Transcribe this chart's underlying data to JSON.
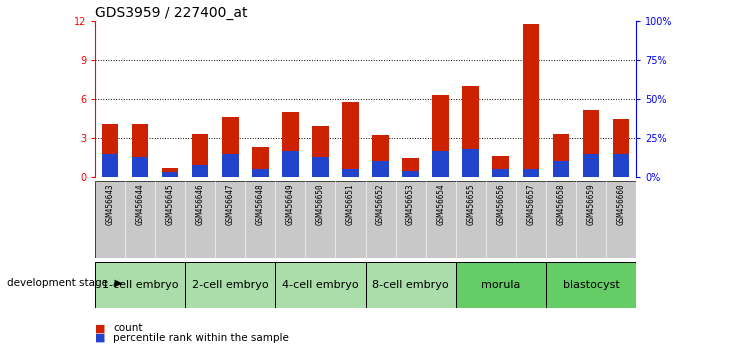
{
  "title": "GDS3959 / 227400_at",
  "samples": [
    "GSM456643",
    "GSM456644",
    "GSM456645",
    "GSM456646",
    "GSM456647",
    "GSM456648",
    "GSM456649",
    "GSM456650",
    "GSM456651",
    "GSM456652",
    "GSM456653",
    "GSM456654",
    "GSM456655",
    "GSM456656",
    "GSM456657",
    "GSM456658",
    "GSM456659",
    "GSM456660"
  ],
  "counts": [
    4.1,
    4.1,
    0.7,
    3.3,
    4.6,
    2.3,
    5.0,
    3.9,
    5.8,
    3.2,
    1.5,
    6.3,
    7.0,
    1.6,
    11.8,
    3.3,
    5.2,
    4.5
  ],
  "percentile_vals": [
    15,
    13,
    3,
    8,
    15,
    5,
    17,
    13,
    5,
    10,
    4,
    17,
    18,
    5,
    5,
    10,
    15,
    15
  ],
  "stages": [
    {
      "label": "1-cell embryo",
      "start": 0,
      "end": 3
    },
    {
      "label": "2-cell embryo",
      "start": 3,
      "end": 6
    },
    {
      "label": "4-cell embryo",
      "start": 6,
      "end": 9
    },
    {
      "label": "8-cell embryo",
      "start": 9,
      "end": 12
    },
    {
      "label": "morula",
      "start": 12,
      "end": 15
    },
    {
      "label": "blastocyst",
      "start": 15,
      "end": 18
    }
  ],
  "stage_colors": [
    "#AADDAA",
    "#AADDAA",
    "#AADDAA",
    "#AADDAA",
    "#66CC66",
    "#66CC66"
  ],
  "ylim_left": [
    0,
    12
  ],
  "ylim_right": [
    0,
    100
  ],
  "yticks_left": [
    0,
    3,
    6,
    9,
    12
  ],
  "yticks_right": [
    0,
    25,
    50,
    75,
    100
  ],
  "bar_color_red": "#CC2200",
  "bar_color_blue": "#2244CC",
  "bg_color_samples": "#C8C8C8",
  "title_fontsize": 10,
  "tick_fontsize": 7,
  "sample_fontsize": 5.5,
  "stage_fontsize": 8,
  "legend_fontsize": 7.5
}
